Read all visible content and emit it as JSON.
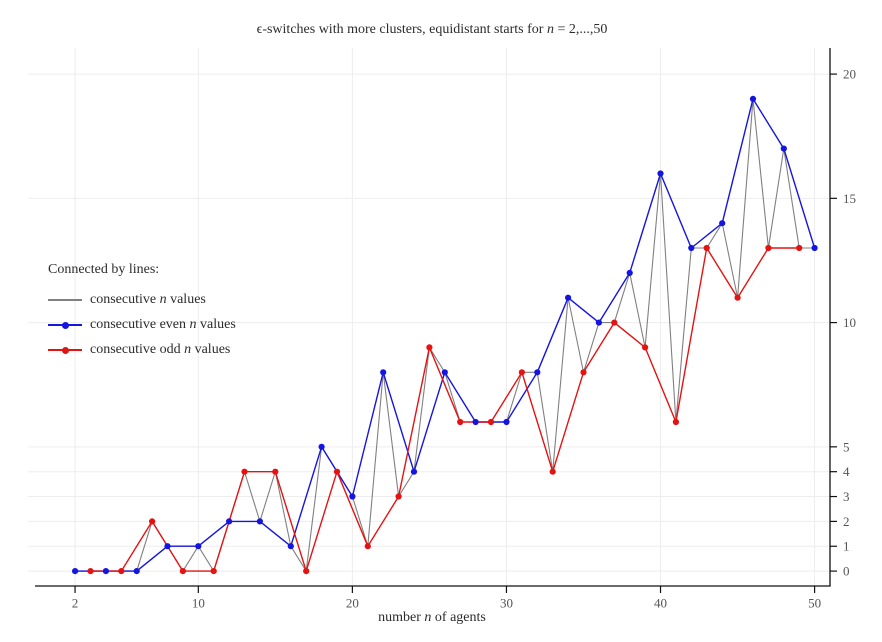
{
  "title": {
    "pre": "ϵ-switches with more clusters, equidistant starts for ",
    "var": "n",
    "post": " = 2,...,50"
  },
  "xlabel": {
    "pre": "number ",
    "var": "n",
    "post": " of agents"
  },
  "legend": {
    "heading": "Connected by lines:",
    "items": [
      {
        "pre": "consecutive ",
        "var": "n",
        "post": " values",
        "color": "#808080",
        "marker": false
      },
      {
        "pre": "consecutive even ",
        "var": "n",
        "post": " values",
        "color": "#1515e0",
        "marker": true
      },
      {
        "pre": "consecutive odd ",
        "var": "n",
        "post": " values",
        "color": "#e51212",
        "marker": true
      }
    ]
  },
  "chart_data": {
    "type": "line",
    "title": "ϵ-switches with more clusters, equidistant starts for n = 2,...,50",
    "xlabel": "number n of agents",
    "ylabel": "",
    "x": [
      2,
      3,
      4,
      5,
      6,
      7,
      8,
      9,
      10,
      11,
      12,
      13,
      14,
      15,
      16,
      17,
      18,
      19,
      20,
      21,
      22,
      23,
      24,
      25,
      26,
      27,
      28,
      29,
      30,
      31,
      32,
      33,
      34,
      35,
      36,
      37,
      38,
      39,
      40,
      41,
      42,
      43,
      44,
      45,
      46,
      47,
      48,
      49,
      50
    ],
    "values": [
      0,
      0,
      0,
      0,
      0,
      2,
      1,
      0,
      1,
      0,
      2,
      4,
      2,
      4,
      1,
      0,
      5,
      4,
      3,
      1,
      8,
      3,
      4,
      9,
      8,
      6,
      6,
      6,
      6,
      8,
      8,
      4,
      11,
      8,
      10,
      10,
      12,
      9,
      16,
      6,
      13,
      13,
      14,
      11,
      19,
      13,
      17,
      13,
      13
    ],
    "series": [
      {
        "name": "consecutive n values",
        "subset": "all",
        "color": "#808080",
        "markers": false
      },
      {
        "name": "consecutive even n values",
        "subset": "even",
        "color": "#1515e0",
        "markers": true
      },
      {
        "name": "consecutive odd n values",
        "subset": "odd",
        "color": "#e51212",
        "markers": true
      }
    ],
    "xticks": [
      2,
      10,
      20,
      30,
      40,
      50
    ],
    "yticks": [
      0,
      1,
      2,
      3,
      4,
      5,
      10,
      15,
      20
    ],
    "xlim": [
      -0.6,
      51
    ],
    "ylim": [
      -0.6,
      21.05
    ],
    "grid": true,
    "legend_position": "upper-left-inside",
    "axis_sides": [
      "bottom",
      "right"
    ],
    "axis_color": "#111111",
    "grid_color": "#ededed",
    "tick_label_color": "#555555"
  }
}
